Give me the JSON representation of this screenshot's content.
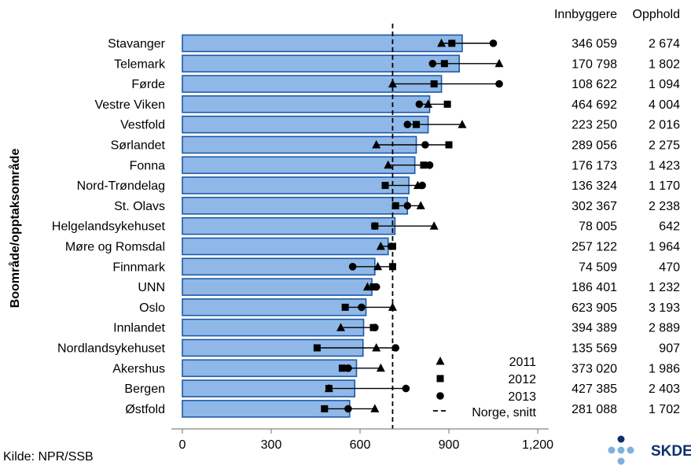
{
  "chart_data": {
    "type": "bar",
    "ylabel": "Boområde/opptaksområde",
    "xlim": [
      0,
      1200
    ],
    "xticks": [
      0,
      300,
      600,
      900,
      1200
    ],
    "xtick_labels": [
      "0",
      "300",
      "600",
      "900",
      "1,200"
    ],
    "reference_value": 710,
    "categories": [
      "Stavanger",
      "Telemark",
      "Førde",
      "Vestre Viken",
      "Vestfold",
      "Sørlandet",
      "Fonna",
      "Nord-Trøndelag",
      "St. Olavs",
      "Helgelandsykehuset",
      "Møre og Romsdal",
      "Finnmark",
      "UNN",
      "Oslo",
      "Innlandet",
      "Nordlandsykehuset",
      "Akershus",
      "Bergen",
      "Østfold"
    ],
    "values": [
      945,
      935,
      875,
      835,
      830,
      790,
      785,
      765,
      760,
      718,
      695,
      650,
      640,
      620,
      612,
      610,
      588,
      582,
      565
    ],
    "series": [
      {
        "name": "2011",
        "marker": "triangle",
        "values": [
          875,
          1070,
          710,
          830,
          945,
          655,
          695,
          795,
          805,
          850,
          670,
          660,
          625,
          710,
          535,
          655,
          670,
          495,
          650
        ]
      },
      {
        "name": "2012",
        "marker": "square",
        "values": [
          910,
          885,
          850,
          895,
          790,
          900,
          815,
          685,
          720,
          650,
          710,
          710,
          645,
          550,
          645,
          455,
          540,
          495,
          480
        ]
      },
      {
        "name": "2013",
        "marker": "circle",
        "values": [
          1050,
          845,
          1070,
          800,
          760,
          820,
          835,
          810,
          760,
          650,
          705,
          575,
          655,
          605,
          650,
          720,
          560,
          755,
          560
        ]
      }
    ],
    "columns": {
      "headers": [
        "Innbyggere",
        "Opphold"
      ],
      "innbyggere": [
        "346 059",
        "170 798",
        "108 622",
        "464 692",
        "223 250",
        "289 056",
        "176 173",
        "136 324",
        "302 367",
        "78 005",
        "257 122",
        "74 509",
        "186 401",
        "623 905",
        "394 389",
        "135 569",
        "373 020",
        "427 385",
        "281 088"
      ],
      "opphold": [
        "2 674",
        "1 802",
        "1 094",
        "4 004",
        "2 016",
        "2 275",
        "1 423",
        "1 170",
        "2 238",
        "642",
        "1 964",
        "470",
        "1 232",
        "3 193",
        "2 889",
        "907",
        "1 986",
        "2 403",
        "1 702"
      ]
    },
    "legend": {
      "position": "bottom-right",
      "entries": [
        "2011",
        "2012",
        "2013",
        "Norge, snitt"
      ]
    },
    "colors": {
      "bar_fill": "#8fb8e8",
      "bar_stroke": "#1d5aa8",
      "marker": "#000000"
    }
  },
  "footer": {
    "source": "Kilde: NPR/SSB",
    "logo_text": "SKDE"
  }
}
